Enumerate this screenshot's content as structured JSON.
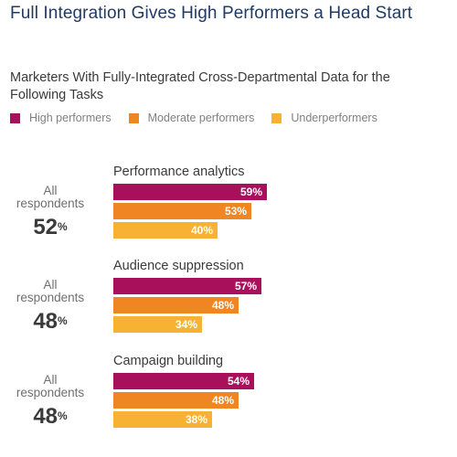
{
  "title": "Full Integration Gives High Performers a Head Start",
  "chart_data": {
    "type": "bar",
    "orientation": "horizontal",
    "subtitle": "Marketers With Fully-Integrated Cross-Departmental Data for the Following Tasks",
    "series": [
      {
        "name": "High performers",
        "color": "#a8105c"
      },
      {
        "name": "Moderate performers",
        "color": "#f08523"
      },
      {
        "name": "Underperformers",
        "color": "#f7b233"
      }
    ],
    "value_scale_max": 100,
    "groups": [
      {
        "task": "Performance analytics",
        "respondents_label": "All respondents",
        "all_respondents": 52,
        "values": [
          59,
          53,
          40
        ]
      },
      {
        "task": "Audience suppression",
        "respondents_label": "All respondents",
        "all_respondents": 48,
        "values": [
          57,
          48,
          34
        ]
      },
      {
        "task": "Campaign building",
        "respondents_label": "All respondents",
        "all_respondents": 48,
        "values": [
          54,
          48,
          38
        ]
      }
    ],
    "value_suffix": "%"
  }
}
